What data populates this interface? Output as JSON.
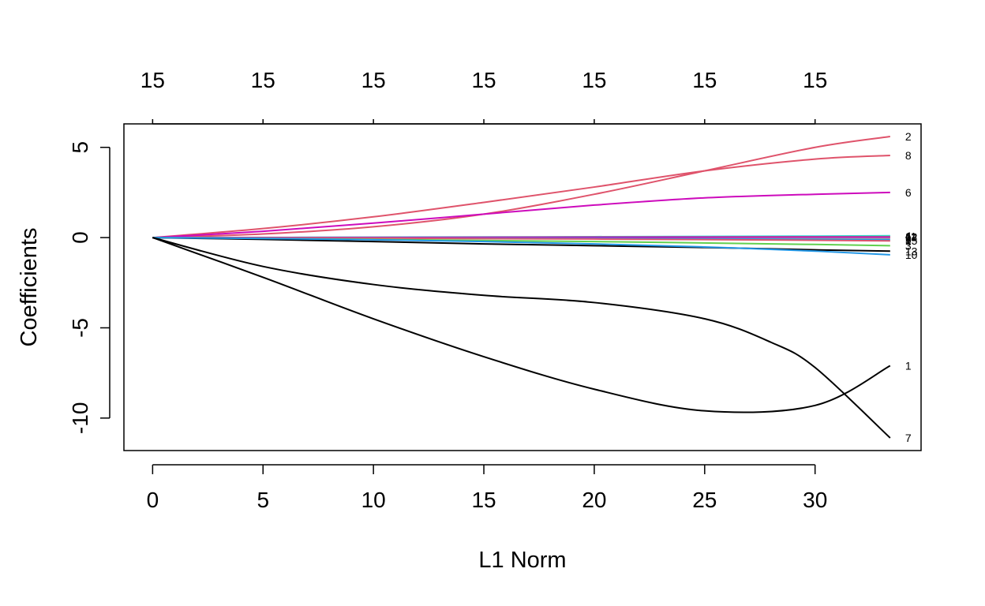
{
  "chart_data": {
    "type": "line",
    "xlabel": "L1 Norm",
    "ylabel": "Coefficients",
    "xlim": [
      -1.3,
      34.8
    ],
    "ylim": [
      -11.8,
      6.3
    ],
    "x_ticks": [
      0,
      5,
      10,
      15,
      20,
      25,
      30
    ],
    "x_tick_labels": [
      "0",
      "5",
      "10",
      "15",
      "20",
      "25",
      "30"
    ],
    "y_ticks": [
      -10,
      -5,
      0,
      5
    ],
    "y_tick_labels": [
      "-10",
      "-5",
      "0",
      "5"
    ],
    "top_axis_ticks": [
      0,
      5,
      10,
      15,
      20,
      25,
      30
    ],
    "top_axis_labels": [
      "15",
      "15",
      "15",
      "15",
      "15",
      "15",
      "15"
    ],
    "grid": false,
    "legend": "none",
    "series": [
      {
        "label": "2",
        "color": "#DF536B",
        "x": [
          0,
          5,
          10,
          15,
          20,
          25,
          30,
          33.4
        ],
        "y": [
          0,
          0.2,
          0.6,
          1.3,
          2.4,
          3.7,
          5.0,
          5.6
        ]
      },
      {
        "label": "8",
        "color": "#DF536B",
        "x": [
          0,
          5,
          10,
          15,
          20,
          25,
          30,
          33.4
        ],
        "y": [
          0,
          0.5,
          1.15,
          1.95,
          2.8,
          3.7,
          4.35,
          4.55
        ]
      },
      {
        "label": "6",
        "color": "#CD0BBC",
        "x": [
          0,
          5,
          10,
          15,
          20,
          25,
          30,
          33.4
        ],
        "y": [
          0,
          0.35,
          0.8,
          1.3,
          1.8,
          2.2,
          2.4,
          2.5
        ]
      },
      {
        "label": "4",
        "color": "#28E2E5",
        "x": [
          0,
          10,
          20,
          30,
          33.4
        ],
        "y": [
          0,
          0.02,
          0.05,
          0.08,
          0.1
        ]
      },
      {
        "label": "11",
        "color": "#61D04F",
        "x": [
          0,
          10,
          20,
          30,
          33.4
        ],
        "y": [
          0,
          0.01,
          0.03,
          0.05,
          0.06
        ]
      },
      {
        "label": "12",
        "color": "#F5C710",
        "x": [
          0,
          10,
          20,
          30,
          33.4
        ],
        "y": [
          0,
          0.0,
          0.01,
          0.02,
          0.02
        ]
      },
      {
        "label": "9",
        "color": "#9E9E9E",
        "x": [
          0,
          10,
          20,
          30,
          33.4
        ],
        "y": [
          0,
          -0.01,
          -0.02,
          -0.03,
          -0.04
        ]
      },
      {
        "label": "14",
        "color": "#CD0BBC",
        "x": [
          0,
          10,
          20,
          30,
          33.4
        ],
        "y": [
          0,
          0.01,
          0.02,
          0.03,
          0.03
        ]
      },
      {
        "label": "5",
        "color": "#2297E6",
        "x": [
          0,
          10,
          20,
          30,
          33.4
        ],
        "y": [
          0,
          -0.02,
          -0.05,
          -0.1,
          -0.12
        ]
      },
      {
        "label": "15",
        "color": "#DF536B",
        "x": [
          0,
          10,
          20,
          30,
          33.4
        ],
        "y": [
          0,
          -0.03,
          -0.08,
          -0.15,
          -0.18
        ]
      },
      {
        "label": "3",
        "color": "#61D04F",
        "x": [
          0,
          10,
          20,
          30,
          33.4
        ],
        "y": [
          0,
          -0.1,
          -0.22,
          -0.38,
          -0.45
        ]
      },
      {
        "label": "13",
        "color": "#000000",
        "x": [
          0,
          5,
          10,
          15,
          20,
          25,
          30,
          33.4
        ],
        "y": [
          0,
          -0.1,
          -0.22,
          -0.35,
          -0.45,
          -0.55,
          -0.68,
          -0.75
        ]
      },
      {
        "label": "10",
        "color": "#2297E6",
        "x": [
          0,
          5,
          10,
          15,
          20,
          25,
          30,
          33.4
        ],
        "y": [
          0,
          -0.05,
          -0.12,
          -0.22,
          -0.35,
          -0.52,
          -0.75,
          -0.95
        ]
      },
      {
        "label": "1",
        "color": "#000000",
        "x": [
          0,
          5,
          10,
          15,
          20,
          25,
          30,
          33.4
        ],
        "y": [
          0,
          -2.2,
          -4.5,
          -6.6,
          -8.4,
          -9.6,
          -9.3,
          -7.1
        ]
      },
      {
        "label": "7",
        "color": "#000000",
        "x": [
          0,
          5,
          10,
          15,
          20,
          25,
          28,
          30,
          33.4
        ],
        "y": [
          0,
          -1.6,
          -2.6,
          -3.2,
          -3.6,
          -4.5,
          -5.8,
          -7.2,
          -11.1
        ]
      }
    ]
  }
}
